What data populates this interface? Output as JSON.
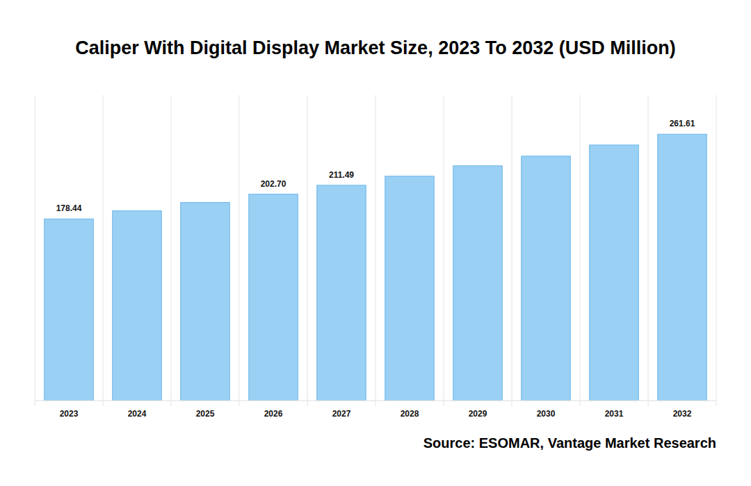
{
  "chart_data": {
    "type": "bar",
    "title": "Caliper With Digital Display Market Size, 2023 To 2032 (USD Million)",
    "source": "Source: ESOMAR, Vantage Market Research",
    "categories": [
      "2023",
      "2024",
      "2025",
      "2026",
      "2027",
      "2028",
      "2029",
      "2030",
      "2031",
      "2032"
    ],
    "values": [
      178.44,
      186.4,
      194.6,
      202.7,
      211.49,
      220.4,
      230.6,
      240.1,
      251.0,
      261.61
    ],
    "value_labels": [
      "178.44",
      null,
      null,
      "202.70",
      "211.49",
      null,
      null,
      null,
      null,
      "261.61"
    ],
    "data_labels": true,
    "color": "#9ad0f3",
    "ylim": [
      0,
      300
    ],
    "grid": true,
    "tick_labels": "x"
  }
}
